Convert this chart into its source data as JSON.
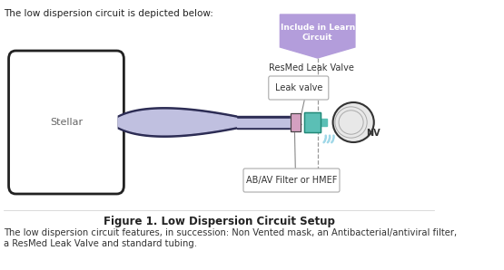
{
  "background_color": "#ffffff",
  "title_text": "Figure 1. Low Dispersion Circuit Setup",
  "top_label": "The low dispersion circuit is depicted below:",
  "bottom_text": "The low dispersion circuit features, in succession: Non Vented mask, an Antibacterial/antiviral filter,\na ResMed Leak Valve and standard tubing.",
  "stellar_label": "Stellar",
  "include_label": "Include in Learn\nCircuit",
  "include_box_color": "#b39ddb",
  "include_text_color": "#ffffff",
  "resmed_label": "ResMed Leak Valve",
  "leak_valve_label": "Leak valve",
  "abav_label": "AB/AV Filter or HMEF",
  "nv_label": "NV",
  "tube_color": "#2c2c54",
  "filter_color_pink": "#d4a0c0",
  "filter_color_teal": "#5bbfb5",
  "air_color": "#a0d8e8"
}
